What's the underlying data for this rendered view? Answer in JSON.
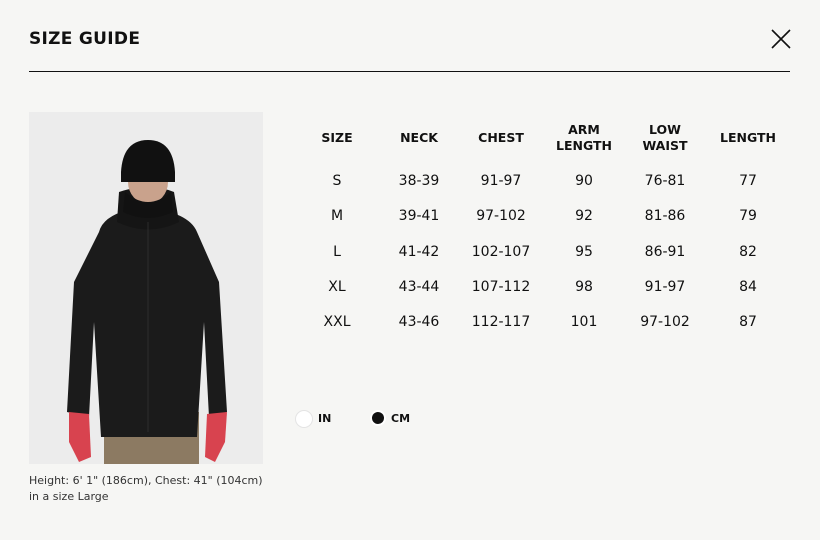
{
  "header": {
    "title": "SIZE GUIDE",
    "close_icon": "close-x-icon"
  },
  "photo": {
    "caption_line1": "Height: 6' 1\" (186cm), Chest: 41\" (104cm)",
    "caption_line2": "in a size Large"
  },
  "table": {
    "headers": [
      [
        "SIZE",
        ""
      ],
      [
        "NECK",
        ""
      ],
      [
        "CHEST",
        ""
      ],
      [
        "ARM",
        "LENGTH"
      ],
      [
        "LOW",
        "WAIST"
      ],
      [
        "LENGTH",
        ""
      ]
    ],
    "rows": [
      [
        "S",
        "38-39",
        "91-97",
        "90",
        "76-81",
        "77"
      ],
      [
        "M",
        "39-41",
        "97-102",
        "92",
        "81-86",
        "79"
      ],
      [
        "L",
        "41-42",
        "102-107",
        "95",
        "86-91",
        "82"
      ],
      [
        "XL",
        "43-44",
        "107-112",
        "98",
        "91-97",
        "84"
      ],
      [
        "XXL",
        "43-46",
        "112-117",
        "101",
        "97-102",
        "87"
      ]
    ]
  },
  "units": {
    "options": [
      {
        "label": "IN",
        "selected": false
      },
      {
        "label": "CM",
        "selected": true
      }
    ]
  }
}
